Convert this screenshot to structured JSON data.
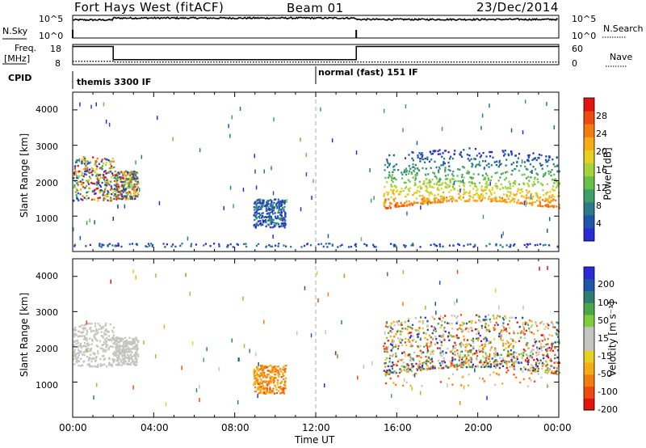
{
  "header": {
    "radar": "Fort Hays West (fitACF)",
    "beam": "Beam 01",
    "date": "23/Dec/2014"
  },
  "top_panels": {
    "nsky_label": "N.Sky",
    "nsearch_label": "N.Search",
    "nsky_ticks": [
      "10^5",
      "10^0"
    ],
    "nsearch_ticks": [
      "10^5",
      "10^0"
    ],
    "freq_label_1": "Freq.",
    "freq_label_2": "[MHz]",
    "freq_ticks": [
      "18",
      "8"
    ],
    "nave_ticks": [
      "60",
      "0"
    ],
    "nave_label": "Nave",
    "cpid_label": "CPID",
    "cpid_mode_1": "themis 3300 IF",
    "cpid_mode_2": "normal (fast) 151 IF"
  },
  "axes": {
    "ylabel": "Slant Range [km]",
    "xlabel": "Time UT",
    "x_ticks": [
      "00:00",
      "04:00",
      "08:00",
      "12:00",
      "16:00",
      "20:00",
      "00:00"
    ],
    "y_ticks": [
      "4000",
      "3000",
      "2000",
      "1000"
    ]
  },
  "colorbars": {
    "power": {
      "label": "Power [dB]",
      "ticks": [
        "28",
        "24",
        "20",
        "16",
        "12",
        "8",
        "4"
      ],
      "colors": [
        "#2b2bd6",
        "#1f56a8",
        "#2a7a8a",
        "#3f9f6a",
        "#68c048",
        "#a6d33a",
        "#e8d020",
        "#f6ad14",
        "#f47d10",
        "#ee4a12",
        "#e0150e"
      ]
    },
    "velocity": {
      "label": "Velocity [m s⁻¹]",
      "ticks": [
        "200",
        "100",
        "50",
        "15",
        "-15",
        "-50",
        "-100",
        "-200"
      ],
      "colors": [
        "#2b2bd6",
        "#1f56a8",
        "#2e7e70",
        "#49a94a",
        "#7fcc3c",
        "#c4c4c0",
        "#c4c4c0",
        "#e8d020",
        "#f6ad14",
        "#f47d10",
        "#ee4a12",
        "#e0150e"
      ]
    }
  },
  "chart_data": {
    "type": "heatmap",
    "title": "Fort Hays West (fitACF) Beam 01 23/Dec/2014",
    "xlabel": "Time UT",
    "ylabel": "Slant Range [km]",
    "xlim": [
      0,
      24
    ],
    "ylim": [
      0,
      4500
    ],
    "grid": false,
    "panels": [
      {
        "name": "Power [dB]",
        "range": [
          0,
          30
        ],
        "features": [
          {
            "t": [
              0.0,
              2.0
            ],
            "range_km": [
              1450,
              2700
            ],
            "value": "8-28"
          },
          {
            "t": [
              2.0,
              3.2
            ],
            "range_km": [
              1500,
              2300
            ],
            "value": "4-12"
          },
          {
            "t": [
              8.9,
              10.5
            ],
            "range_km": [
              700,
              1500
            ],
            "value": "4-10"
          },
          {
            "t": [
              0.0,
              24.0
            ],
            "range_km": [
              150,
              250
            ],
            "value": "4-8"
          },
          {
            "t": [
              15.3,
              24.0
            ],
            "range_km": [
              900,
              2800
            ],
            "value": "4-28"
          }
        ]
      },
      {
        "name": "Velocity [m s-1]",
        "range": [
          -200,
          200
        ],
        "features": [
          {
            "t": [
              0.0,
              2.0
            ],
            "range_km": [
              1450,
              2700
            ],
            "value": "-15 to 15"
          },
          {
            "t": [
              2.0,
              3.2
            ],
            "range_km": [
              1500,
              2300
            ],
            "value": "-15 to 15"
          },
          {
            "t": [
              8.9,
              10.5
            ],
            "range_km": [
              700,
              1500
            ],
            "value": "-50 to -100"
          },
          {
            "t": [
              15.3,
              24.0
            ],
            "range_km": [
              900,
              2800
            ],
            "value": "-15 to 15"
          },
          {
            "t": [
              15.3,
              24.0
            ],
            "range_km": [
              2200,
              2800
            ],
            "value": "-200 to 200"
          }
        ]
      }
    ],
    "nsky": {
      "t": [
        0,
        2,
        2,
        14,
        14,
        24
      ],
      "log10": [
        4.0,
        4.0,
        4.4,
        4.3,
        4.1,
        4.3
      ]
    },
    "freq_mhz": {
      "t": [
        0,
        2,
        2,
        14,
        14,
        24
      ],
      "values": [
        17,
        17,
        10.5,
        10.5,
        17,
        17
      ]
    },
    "nave": {
      "t": [
        0,
        2,
        2,
        14,
        14,
        24
      ],
      "values": [
        10,
        10,
        8,
        8,
        8,
        8
      ]
    },
    "cpid_change_t": 12.0
  }
}
